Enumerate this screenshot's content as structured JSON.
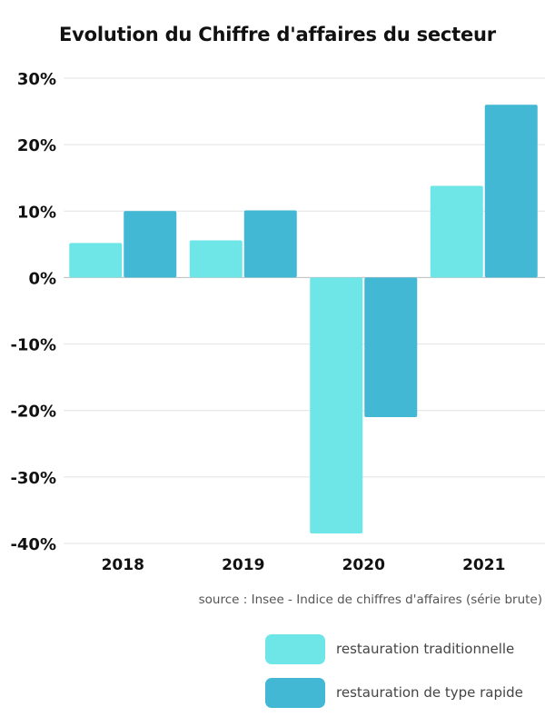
{
  "chart_data": {
    "type": "bar",
    "title": "Evolution du Chiffre d'affaires du secteur",
    "categories": [
      "2018",
      "2019",
      "2020",
      "2021"
    ],
    "series": [
      {
        "name": "restauration traditionnelle",
        "values": [
          5.2,
          5.6,
          -38.5,
          13.8
        ]
      },
      {
        "name": "restauration de type rapide",
        "values": [
          10,
          10.1,
          -21,
          26
        ]
      }
    ],
    "ylim": [
      -40,
      30
    ],
    "yticks": [
      "30%",
      "20%",
      "10%",
      "0%",
      "-10%",
      "-20%",
      "-30%",
      "-40%"
    ],
    "ytick_values": [
      30,
      20,
      10,
      0,
      -10,
      -20,
      -30,
      -40
    ],
    "grid": true,
    "legend_position": "bottom-right",
    "colors": [
      "#6ee6e8",
      "#42b8d5"
    ]
  },
  "source_note": "source : Insee - Indice de chiffres d'affaires (série brute)"
}
